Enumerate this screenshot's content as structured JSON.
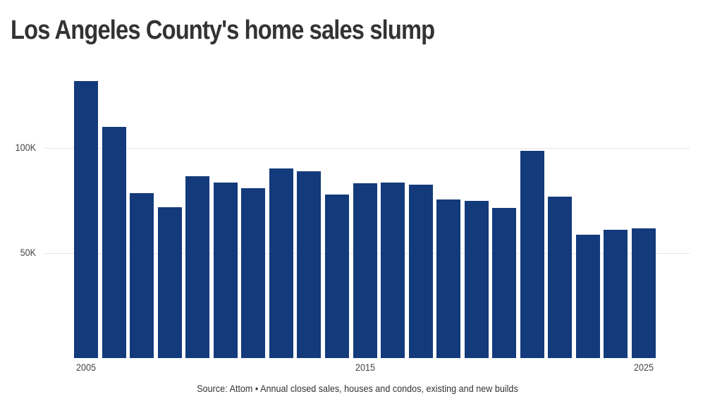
{
  "header": {
    "title": "Los Angeles County's home sales slump"
  },
  "footer": {
    "source": "Source: Attom • Annual closed sales, houses and condos, existing and new builds"
  },
  "colors": {
    "bar": "#133a7b",
    "title": "#333333",
    "gridline": "#e6e6e6",
    "label": "#444444"
  },
  "axis": {
    "y_ticks": [
      {
        "label": "100K",
        "value": 100000
      },
      {
        "label": "50K",
        "value": 50000
      }
    ],
    "x_ticks": [
      {
        "label": "2005",
        "index": 0
      },
      {
        "label": "2015",
        "index": 10
      },
      {
        "label": "2025",
        "index": 20
      }
    ]
  },
  "chart_data": {
    "type": "bar",
    "title": "Los Angeles County's home sales slump",
    "subtitle": "",
    "xlabel": "",
    "ylabel": "",
    "categories": [
      "2005",
      "2006",
      "2007",
      "2008",
      "2009",
      "2010",
      "2011",
      "2012",
      "2013",
      "2014",
      "2015",
      "2016",
      "2017",
      "2018",
      "2019",
      "2020",
      "2021",
      "2022",
      "2023",
      "2024",
      "2025"
    ],
    "values": [
      132000,
      110000,
      78500,
      71700,
      86600,
      83600,
      80900,
      90300,
      88900,
      77900,
      83100,
      83700,
      82600,
      75400,
      74800,
      71500,
      98700,
      76700,
      58800,
      61100,
      61800
    ],
    "ylim": [
      0,
      140000
    ],
    "y_ticks": [
      50000,
      100000
    ],
    "y_tick_labels": [
      "50K",
      "100K"
    ],
    "x_tick_labels": [
      "2005",
      "2015",
      "2025"
    ],
    "grid": "horizontal",
    "legend": null,
    "annotations": [
      "Source: Attom • Annual closed sales, houses and condos, existing and new builds"
    ]
  }
}
